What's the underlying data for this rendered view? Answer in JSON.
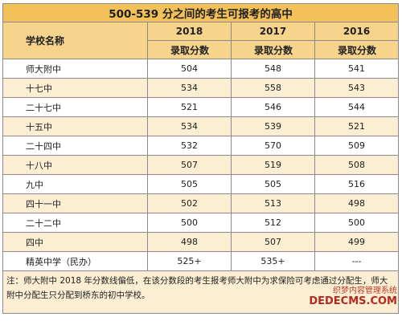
{
  "title": "500-539 分之间的考生可报考的高中",
  "header": {
    "school_col": "学校名称",
    "years": [
      "2018",
      "2017",
      "2016"
    ],
    "sub": [
      "录取分数",
      "录取分数",
      "录取分数"
    ]
  },
  "rows": [
    {
      "school": "师大附中",
      "v2018": "504",
      "v2017": "548",
      "v2016": "541"
    },
    {
      "school": "十七中",
      "v2018": "534",
      "v2017": "558",
      "v2016": "543"
    },
    {
      "school": "二十七中",
      "v2018": "521",
      "v2017": "546",
      "v2016": "544"
    },
    {
      "school": "十五中",
      "v2018": "534",
      "v2017": "539",
      "v2016": "521"
    },
    {
      "school": "二十四中",
      "v2018": "532",
      "v2017": "570",
      "v2016": "509"
    },
    {
      "school": "十八中",
      "v2018": "507",
      "v2017": "519",
      "v2016": "508"
    },
    {
      "school": "九中",
      "v2018": "505",
      "v2017": "505",
      "v2016": "516"
    },
    {
      "school": "四十一中",
      "v2018": "502",
      "v2017": "513",
      "v2016": "498"
    },
    {
      "school": "二十二中",
      "v2018": "500",
      "v2017": "512",
      "v2016": "500"
    },
    {
      "school": "四中",
      "v2018": "498",
      "v2017": "507",
      "v2016": "499"
    },
    {
      "school": "精英中学（民办）",
      "v2018": "525+",
      "v2017": "535+",
      "v2016": "---"
    }
  ],
  "note": "注：师大附中 2018 年分数线偏低，在该分数段的考生报考师大附中为求保险可考虑通过分配生，师大附中分配生只分配到桥东的初中学校。",
  "watermark": {
    "line1": "织梦内容管理系统",
    "line2": "DEDECMS.COM"
  },
  "colors": {
    "title_bg": "#f3c15a",
    "header_bg": "#f6d48c",
    "alt_row_bg": "#fbeed3",
    "border": "#8a8a8a"
  }
}
